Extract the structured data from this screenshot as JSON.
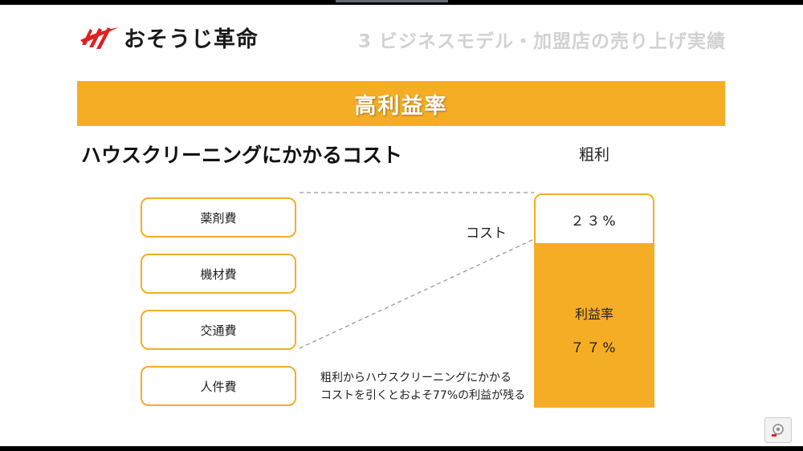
{
  "header": {
    "logo_text": "おそうじ革命",
    "page_heading": "3 ビジネスモデル・加盟店の売り上げ実績"
  },
  "banner": {
    "title": "高利益率"
  },
  "section": {
    "title": "ハウスクリーニングにかかるコスト"
  },
  "costs": {
    "items": [
      "薬剤費",
      "機材費",
      "交通費",
      "人件費"
    ],
    "label": "コスト"
  },
  "bar": {
    "header": "粗利",
    "cost_value": "２３%",
    "profit_label": "利益率",
    "profit_value": "７７%",
    "cost_fraction": 0.23,
    "profit_fraction": 0.77
  },
  "note": {
    "line1": "粗利からハウスクリーニングにかかる",
    "line2": "コストを引くとおよそ77%の利益が残る"
  },
  "colors": {
    "accent": "#f5ad25",
    "logo_red": "#e02020"
  },
  "icons": {
    "logo": "swoosh-logo-icon",
    "corner": "screen-capture-icon"
  }
}
